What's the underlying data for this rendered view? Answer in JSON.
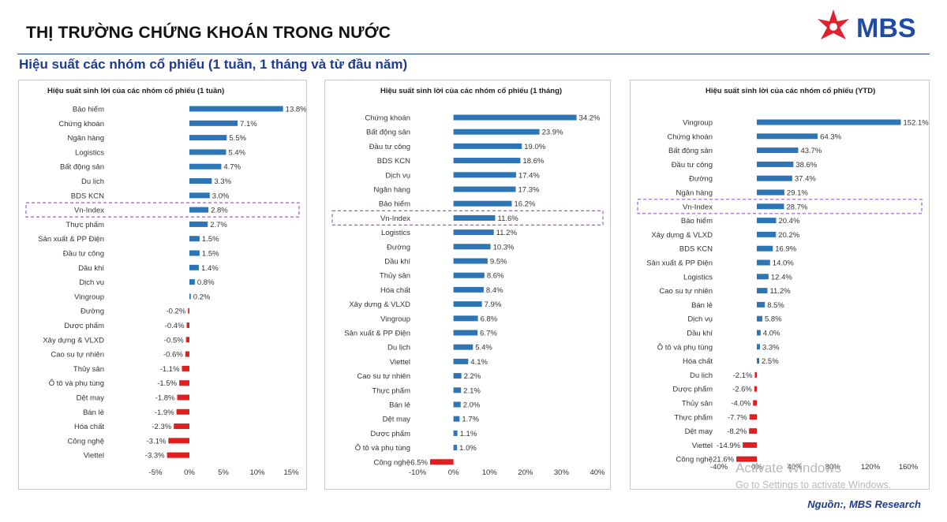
{
  "header": {
    "title": "THỊ TRƯỜNG CHỨNG KHOÁN TRONG NƯỚC",
    "subtitle": "Hiệu suất các nhóm cổ phiếu (1 tuần, 1 tháng và từ đầu năm)",
    "logo_text": "MBS"
  },
  "footer": {
    "source": "Nguồn:, MBS Research",
    "watermark_line1": "Activate Windows",
    "watermark_line2": "Go to Settings to activate Windows."
  },
  "colors": {
    "positive": "#2e75b6",
    "negative": "#e02020",
    "highlight": "#9b59d0",
    "accent": "#1f3b8f",
    "logo_red": "#e0212e",
    "logo_blue": "#1f4ba5"
  },
  "chart_data": [
    {
      "type": "bar",
      "orientation": "horizontal",
      "title": "Hiệu suất sinh lời của các nhóm cổ phiếu (1 tuần)",
      "highlight_category": "Vn-Index",
      "xlim": [
        -5,
        15
      ],
      "xticks": [
        -5,
        0,
        5,
        10,
        15
      ],
      "categories": [
        "Bảo hiểm",
        "Chứng khoán",
        "Ngân hàng",
        "Logistics",
        "Bất động sản",
        "Du lịch",
        "BDS KCN",
        "Vn-Index",
        "Thực phẩm",
        "Sản xuất & PP Điện",
        "Đầu tư công",
        "Dầu khí",
        "Dịch vụ",
        "Vingroup",
        "Đường",
        "Dược phẩm",
        "Xây dựng & VLXD",
        "Cao su tự nhiên",
        "Thủy sản",
        "Ô tô và phụ tùng",
        "Dệt may",
        "Bán lẻ",
        "Hóa chất",
        "Công nghệ",
        "Viettel"
      ],
      "values": [
        13.8,
        7.1,
        5.5,
        5.4,
        4.7,
        3.3,
        3.0,
        2.8,
        2.7,
        1.5,
        1.5,
        1.4,
        0.8,
        0.2,
        -0.2,
        -0.4,
        -0.5,
        -0.6,
        -1.1,
        -1.5,
        -1.8,
        -1.9,
        -2.3,
        -3.1,
        -3.3
      ]
    },
    {
      "type": "bar",
      "orientation": "horizontal",
      "title": "Hiệu suất sinh lời của các nhóm cổ phiếu (1 tháng)",
      "highlight_category": "Vn-Index",
      "xlim": [
        -10,
        40
      ],
      "xticks": [
        -10,
        0,
        10,
        20,
        30,
        40
      ],
      "categories": [
        "Chứng khoán",
        "Bất động sản",
        "Đầu tư công",
        "BDS KCN",
        "Dịch vụ",
        "Ngân hàng",
        "Bảo hiểm",
        "Vn-Index",
        "Logistics",
        "Đường",
        "Dầu khí",
        "Thủy sản",
        "Hóa chất",
        "Xây dựng & VLXD",
        "Vingroup",
        "Sản xuất & PP Điện",
        "Du lịch",
        "Viettel",
        "Cao su tự nhiên",
        "Thực phẩm",
        "Bán lẻ",
        "Dệt may",
        "Dược phẩm",
        "Ô tô và phụ tùng",
        "Công nghệ"
      ],
      "values": [
        34.2,
        23.9,
        19.0,
        18.6,
        17.4,
        17.3,
        16.2,
        11.6,
        11.2,
        10.3,
        9.5,
        8.6,
        8.4,
        7.9,
        6.8,
        6.7,
        5.4,
        4.1,
        2.2,
        2.1,
        2.0,
        1.7,
        1.1,
        1.0,
        -6.5
      ]
    },
    {
      "type": "bar",
      "orientation": "horizontal",
      "title": "Hiệu suất sinh lời của các nhóm cổ phiếu (YTD)",
      "highlight_category": "Vn-Index",
      "xlim": [
        -40,
        160
      ],
      "xticks": [
        -40,
        0,
        40,
        80,
        120,
        160
      ],
      "categories": [
        "Vingroup",
        "Chứng khoán",
        "Bất động sản",
        "Đầu tư công",
        "Đường",
        "Ngân hàng",
        "Vn-Index",
        "Bảo hiểm",
        "Xây dựng & VLXD",
        "BDS KCN",
        "Sản xuất & PP Điện",
        "Logistics",
        "Cao su tự nhiên",
        "Bán lẻ",
        "Dịch vụ",
        "Dầu khí",
        "Ô tô và phụ tùng",
        "Hóa chất",
        "Du lịch",
        "Dược phẩm",
        "Thủy sản",
        "Thực phẩm",
        "Dệt may",
        "Viettel",
        "Công nghệ"
      ],
      "values": [
        152.1,
        64.3,
        43.7,
        38.6,
        37.4,
        29.1,
        28.7,
        20.4,
        20.2,
        16.9,
        14.0,
        12.4,
        11.2,
        8.5,
        5.8,
        4.0,
        3.3,
        2.5,
        -2.1,
        -2.6,
        -4.0,
        -7.7,
        -8.2,
        -14.9,
        -21.6
      ]
    }
  ]
}
